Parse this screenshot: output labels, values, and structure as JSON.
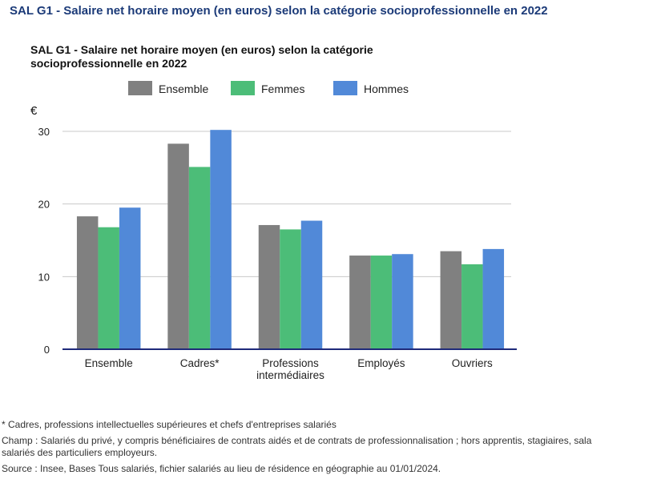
{
  "page_title": "SAL G1 - Salaire net horaire moyen (en euros) selon la catégorie socioprofessionnelle en 2022",
  "chart_data": {
    "type": "bar",
    "title": "SAL G1 - Salaire net horaire moyen (en euros) selon la catégorie socioprofessionnelle en 2022",
    "ylabel": "€",
    "xlabel": "",
    "ylim": [
      0,
      30
    ],
    "yticks": [
      0,
      10,
      20,
      30
    ],
    "grid": true,
    "legend_position": "top",
    "categories": [
      [
        "Ensemble"
      ],
      [
        "Cadres*"
      ],
      [
        "Professions",
        "intermédiaires"
      ],
      [
        "Employés"
      ],
      [
        "Ouvriers"
      ]
    ],
    "series": [
      {
        "name": "Ensemble",
        "color": "#808080",
        "values": [
          18.3,
          28.3,
          17.1,
          12.9,
          13.5
        ]
      },
      {
        "name": "Femmes",
        "color": "#4cbd78",
        "values": [
          16.8,
          25.1,
          16.5,
          12.9,
          11.7
        ]
      },
      {
        "name": "Hommes",
        "color": "#5189d8",
        "values": [
          19.5,
          30.2,
          17.7,
          13.1,
          13.8
        ]
      }
    ]
  },
  "notes": {
    "footnote": "* Cadres, professions intellectuelles supérieures et chefs d'entreprises salariés",
    "champ_line1": "Champ : Salariés du privé, y compris bénéficiaires de contrats aidés et de contrats de professionnalisation ; hors apprentis, stagiaires, sala",
    "champ_line2": "salariés des particuliers employeurs.",
    "source": "Source : Insee, Bases Tous salariés, fichier salariés au lieu de résidence en géographie au 01/01/2024."
  }
}
